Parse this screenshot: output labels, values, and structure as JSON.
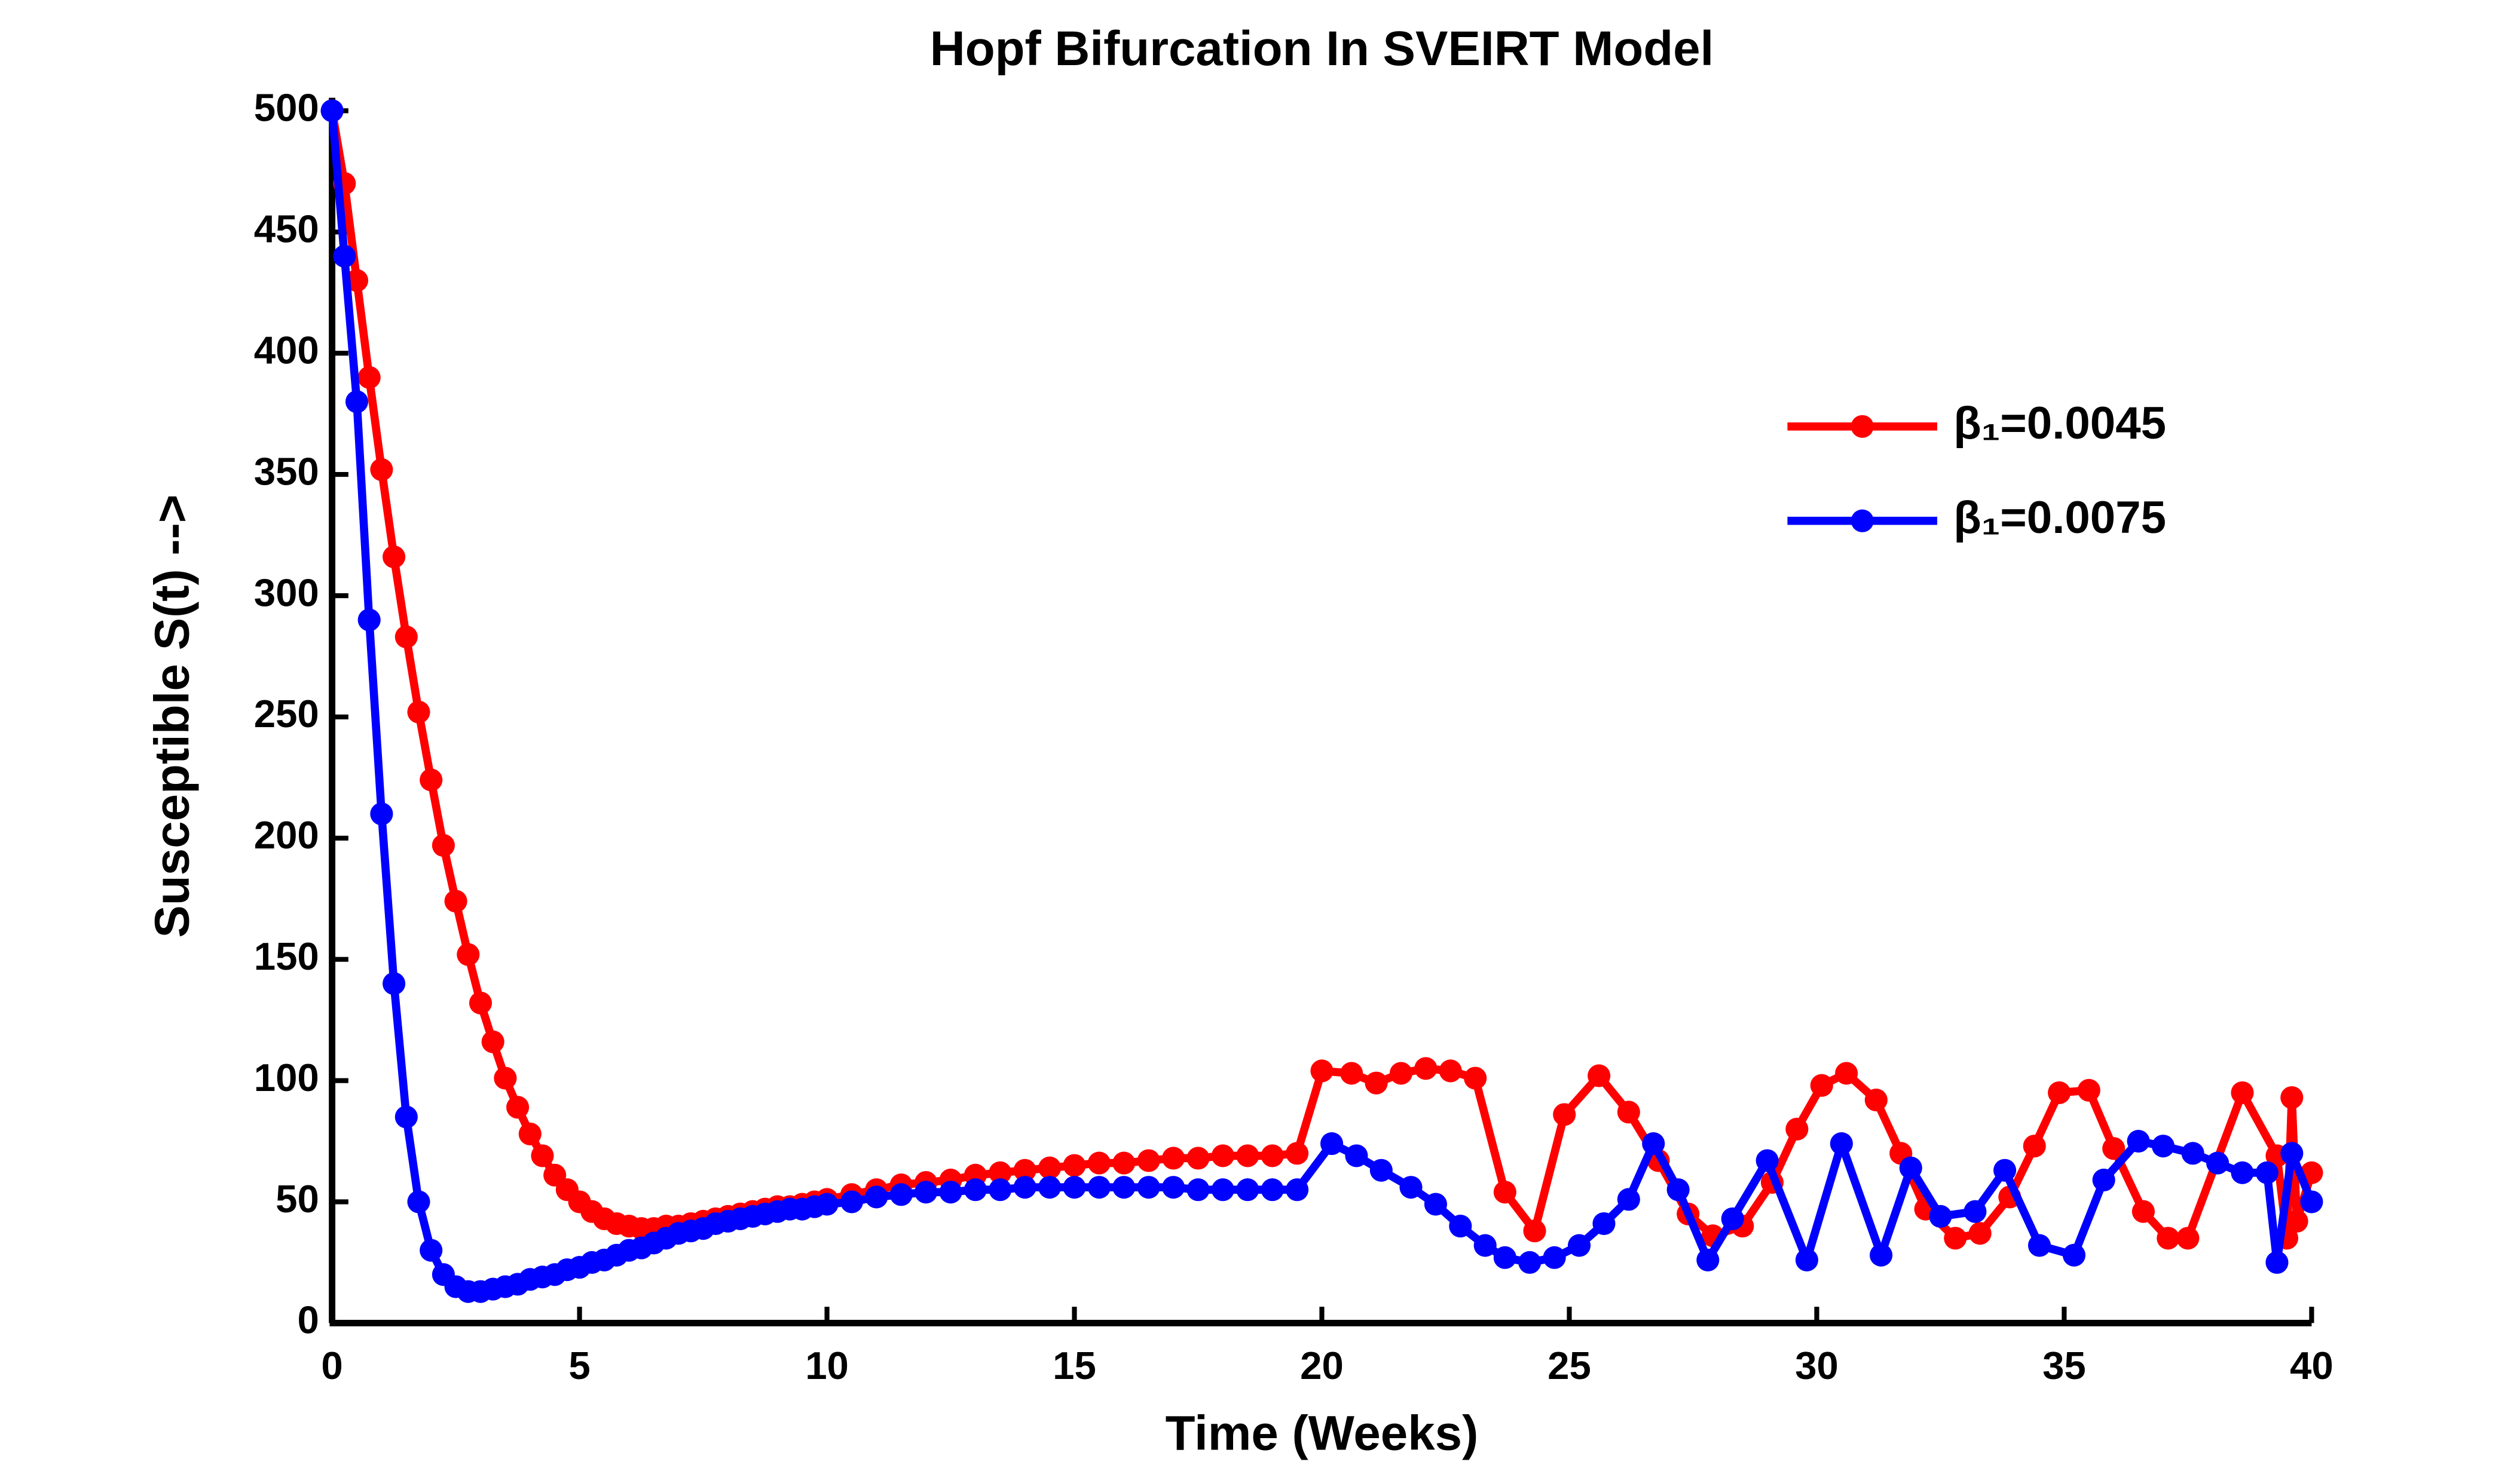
{
  "chart_data": {
    "type": "line",
    "title": "Hopf Bifurcation In SVEIRT Model",
    "x_label": "Time (Weeks)",
    "y_label": "Susceptible S(t) -->",
    "xlim": [
      0,
      40
    ],
    "ylim": [
      0,
      500
    ],
    "xticks": [
      0,
      5,
      10,
      15,
      20,
      25,
      30,
      35,
      40
    ],
    "yticks": [
      0,
      50,
      100,
      150,
      200,
      250,
      300,
      350,
      400,
      450,
      500
    ],
    "legend": "upper right",
    "series": [
      {
        "name": "β₁=0.0045",
        "color": "#ff0000",
        "x": [
          0,
          0.25,
          0.5,
          0.75,
          1,
          1.25,
          1.5,
          1.75,
          2,
          2.25,
          2.5,
          2.75,
          3,
          3.25,
          3.5,
          3.75,
          4,
          4.25,
          4.5,
          4.75,
          5,
          5.25,
          5.5,
          5.75,
          6,
          6.25,
          6.5,
          6.75,
          7,
          7.25,
          7.5,
          7.75,
          8,
          8.25,
          8.5,
          8.75,
          9,
          9.25,
          9.5,
          9.75,
          10,
          10.5,
          11,
          11.5,
          12,
          12.5,
          13,
          13.5,
          14,
          14.5,
          15,
          15.5,
          16,
          16.5,
          17,
          17.5,
          18,
          18.5,
          19,
          19.5,
          20,
          20.6,
          21.1,
          21.6,
          22.1,
          22.6,
          23.1,
          23.7,
          24.3,
          24.9,
          25.6,
          26.2,
          26.8,
          27.4,
          27.9,
          28.5,
          29.1,
          29.6,
          30.1,
          30.6,
          31.2,
          31.7,
          32.2,
          32.8,
          33.3,
          33.9,
          34.4,
          34.9,
          35.5,
          36,
          36.6,
          37.1,
          37.5,
          38.6,
          39.3,
          39.5,
          39.6,
          39.7,
          40
        ],
        "values": [
          500,
          470,
          430,
          390,
          352,
          316,
          283,
          252,
          224,
          197,
          174,
          152,
          132,
          116,
          101,
          89,
          78,
          69,
          61,
          55,
          50,
          46,
          43,
          41,
          40,
          39,
          39,
          40,
          40,
          41,
          42,
          43,
          44,
          45,
          46,
          47,
          48,
          48,
          49,
          50,
          51,
          53,
          55,
          57,
          58,
          59,
          61,
          62,
          63,
          64,
          65,
          66,
          66,
          67,
          68,
          68,
          69,
          69,
          69,
          70,
          104,
          103,
          99,
          103,
          105,
          104,
          101,
          54,
          38,
          86,
          102,
          87,
          67,
          45,
          36,
          40,
          58,
          80,
          98,
          103,
          92,
          70,
          47,
          35,
          37,
          52,
          73,
          95,
          96,
          72,
          46,
          35,
          35,
          95,
          69,
          35,
          93,
          42,
          62
        ]
      },
      {
        "name": "β₁=0.0075",
        "color": "#0000ff",
        "x": [
          0,
          0.25,
          0.5,
          0.75,
          1,
          1.25,
          1.5,
          1.75,
          2,
          2.25,
          2.5,
          2.75,
          3,
          3.25,
          3.5,
          3.75,
          4,
          4.25,
          4.5,
          4.75,
          5,
          5.25,
          5.5,
          5.75,
          6,
          6.25,
          6.5,
          6.75,
          7,
          7.25,
          7.5,
          7.75,
          8,
          8.25,
          8.5,
          8.75,
          9,
          9.25,
          9.5,
          9.75,
          10,
          10.5,
          11,
          11.5,
          12,
          12.5,
          13,
          13.5,
          14,
          14.5,
          15,
          15.5,
          16,
          16.5,
          17,
          17.5,
          18,
          18.5,
          19,
          19.5,
          20.2,
          20.7,
          21.2,
          21.8,
          22.3,
          22.8,
          23.3,
          23.7,
          24.2,
          24.7,
          25.2,
          25.7,
          26.2,
          26.7,
          27.2,
          27.8,
          28.3,
          29,
          29.8,
          30.5,
          31.3,
          31.9,
          32.5,
          33.2,
          33.8,
          34.5,
          35.2,
          35.8,
          36.5,
          37,
          37.6,
          38.1,
          38.6,
          39.1,
          39.3,
          39.6,
          40
        ],
        "values": [
          500,
          440,
          380,
          290,
          210,
          140,
          85,
          50,
          30,
          20,
          15,
          13,
          13,
          14,
          15,
          16,
          18,
          19,
          20,
          22,
          23,
          25,
          26,
          28,
          30,
          31,
          33,
          35,
          37,
          38,
          39,
          41,
          42,
          43,
          44,
          45,
          46,
          47,
          47,
          48,
          49,
          50,
          52,
          53,
          54,
          54,
          55,
          55,
          56,
          56,
          56,
          56,
          56,
          56,
          56,
          55,
          55,
          55,
          55,
          55,
          74,
          69,
          63,
          56,
          49,
          40,
          32,
          27,
          25,
          27,
          32,
          41,
          51,
          74,
          55,
          26,
          43,
          67,
          26,
          74,
          28,
          64,
          44,
          46,
          63,
          32,
          28,
          59,
          75,
          73,
          70,
          66,
          62,
          62,
          25,
          70,
          50
        ]
      }
    ]
  }
}
